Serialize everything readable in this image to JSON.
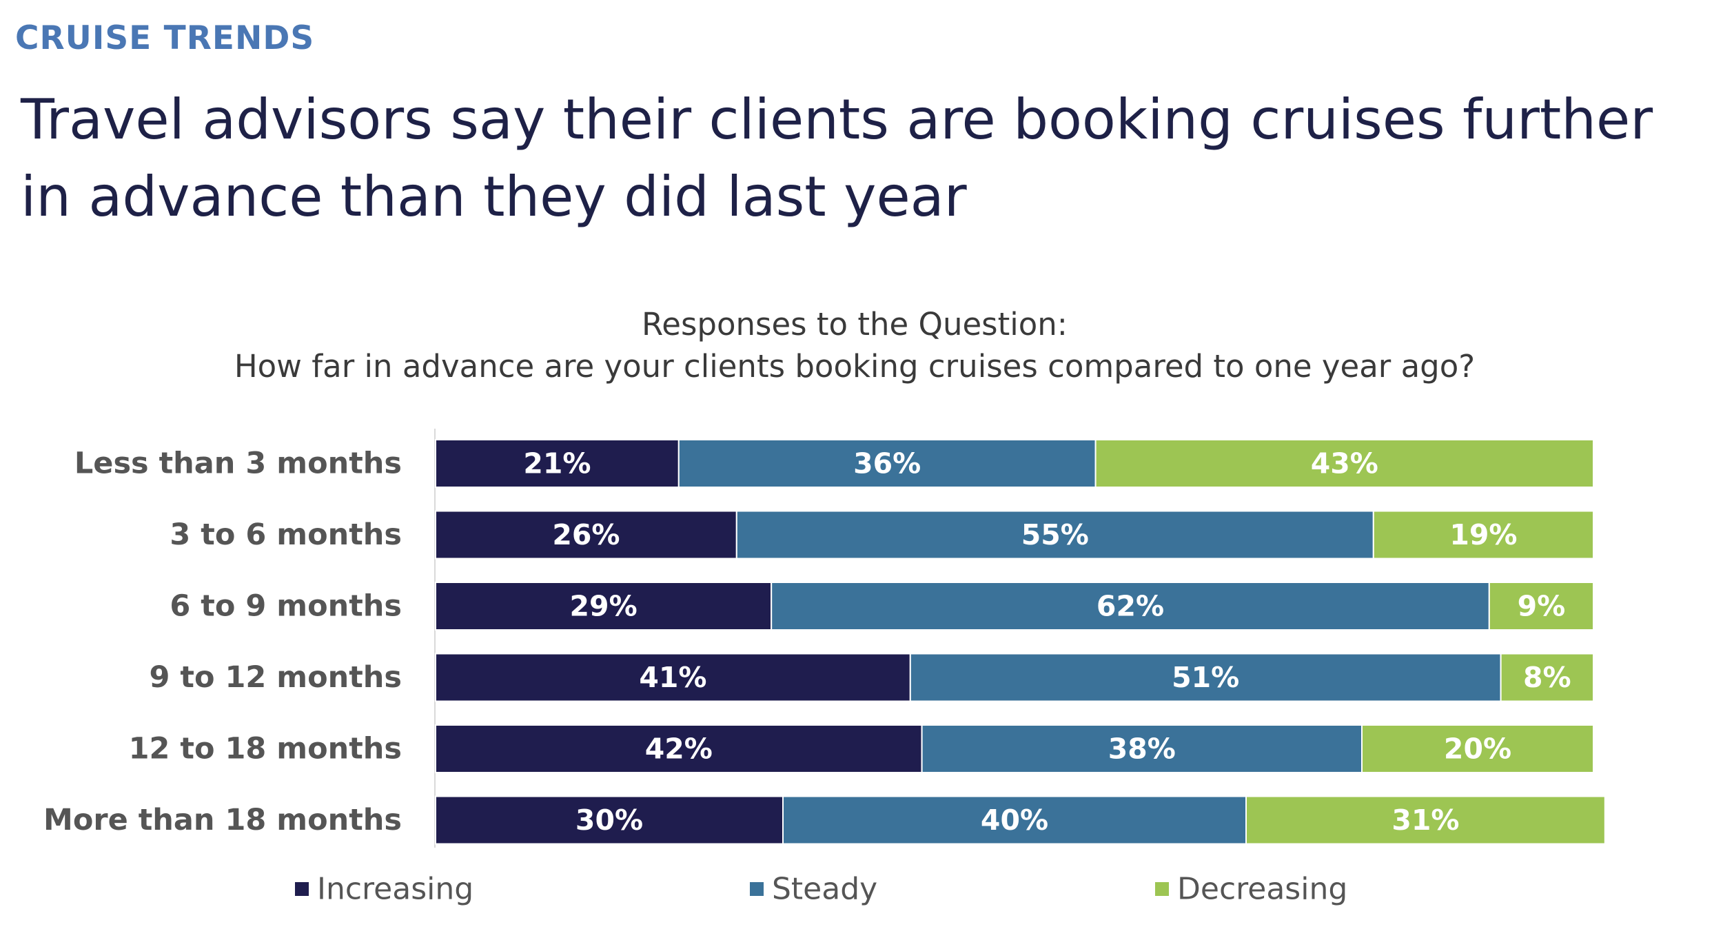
{
  "header": {
    "section_label": "CRUISE TRENDS",
    "headline": "Travel advisors say their clients are booking cruises further in advance than they did last year"
  },
  "chart_data": {
    "type": "bar",
    "orientation": "horizontal",
    "stacked": true,
    "title": "Responses to the Question:",
    "subtitle": "How far in advance are your clients booking cruises compared to one year ago?",
    "categories": [
      "Less than 3 months",
      "3 to 6 months",
      "6 to 9 months",
      "9 to 12 months",
      "12 to 18 months",
      "More than 18 months"
    ],
    "series": [
      {
        "name": "Increasing",
        "color": "#1f1d4e",
        "values": [
          21,
          26,
          29,
          41,
          42,
          30
        ]
      },
      {
        "name": "Steady",
        "color": "#3b7299",
        "values": [
          36,
          55,
          62,
          51,
          38,
          40
        ]
      },
      {
        "name": "Decreasing",
        "color": "#9dc553",
        "values": [
          43,
          19,
          9,
          8,
          20,
          31
        ]
      }
    ],
    "value_suffix": "%",
    "xlim": [
      0,
      100
    ],
    "legend_position": "bottom",
    "grid": false
  }
}
